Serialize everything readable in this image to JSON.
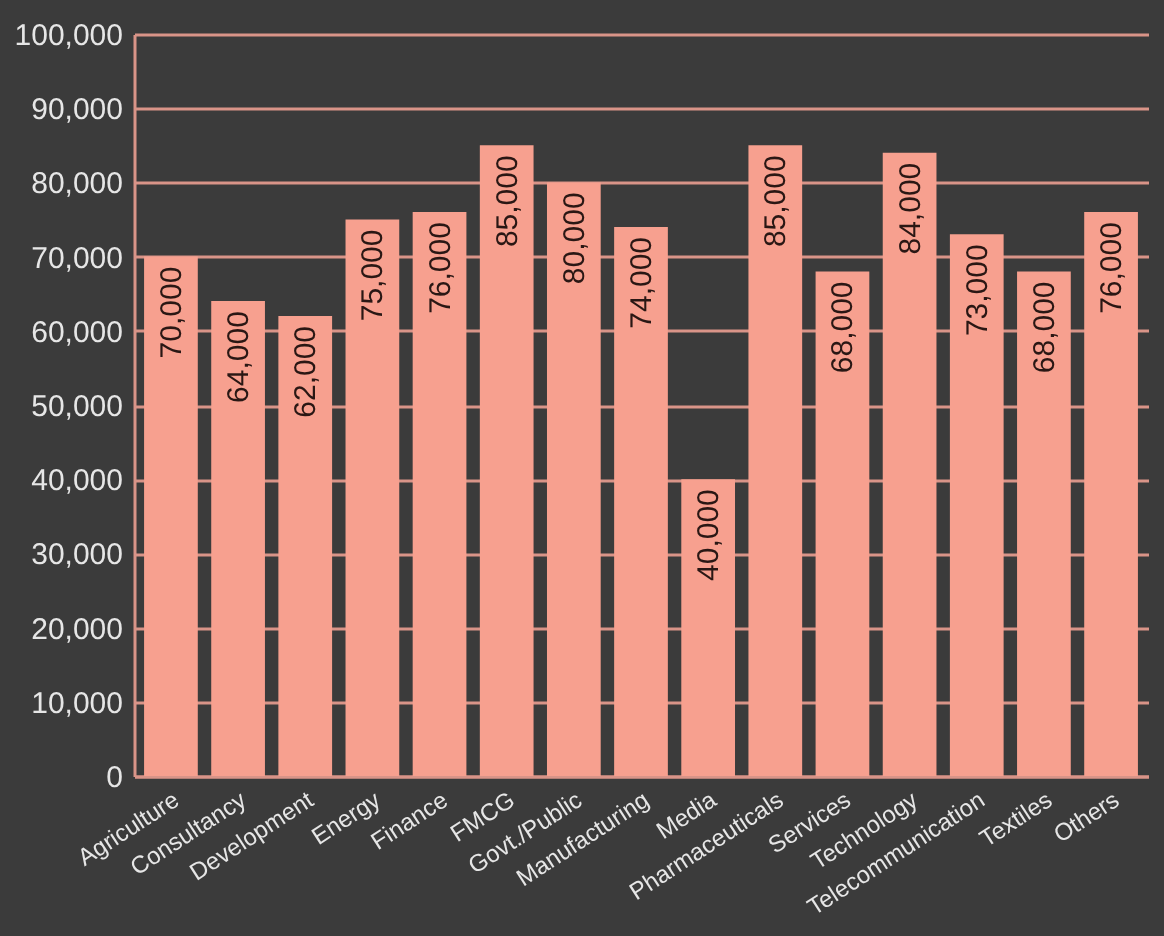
{
  "chart_data": {
    "type": "bar",
    "categories": [
      "Agriculture",
      "Consultancy",
      "Development",
      "Energy",
      "Finance",
      "FMCG",
      "Govt./Public",
      "Manufacturing",
      "Media",
      "Pharmaceuticals",
      "Services",
      "Technology",
      "Telecommunication",
      "Textiles",
      "Others"
    ],
    "values": [
      70000,
      64000,
      62000,
      75000,
      76000,
      85000,
      80000,
      74000,
      40000,
      85000,
      68000,
      84000,
      73000,
      68000,
      76000
    ],
    "value_labels": [
      "70,000",
      "64,000",
      "62,000",
      "75,000",
      "76,000",
      "85,000",
      "80,000",
      "74,000",
      "40,000",
      "85,000",
      "68,000",
      "84,000",
      "73,000",
      "68,000",
      "76,000"
    ],
    "color": "#f7a08f",
    "ylim": [
      0,
      100000
    ],
    "yticks": [
      0,
      {
        "value": 10000,
        "label": "10,000"
      },
      {
        "value": 20000,
        "label": "20,000"
      },
      {
        "value": 30000,
        "label": "30,000"
      },
      {
        "value": 40000,
        "label": "40,000"
      },
      {
        "value": 50000,
        "label": "50,000"
      },
      {
        "value": 60000,
        "label": "60,000"
      },
      {
        "value": 70000,
        "label": "70,000"
      },
      {
        "value": 80000,
        "label": "80,000"
      },
      {
        "value": 90000,
        "label": "90,000"
      },
      {
        "value": 100000,
        "label": "100,000"
      }
    ],
    "grid": "y"
  }
}
